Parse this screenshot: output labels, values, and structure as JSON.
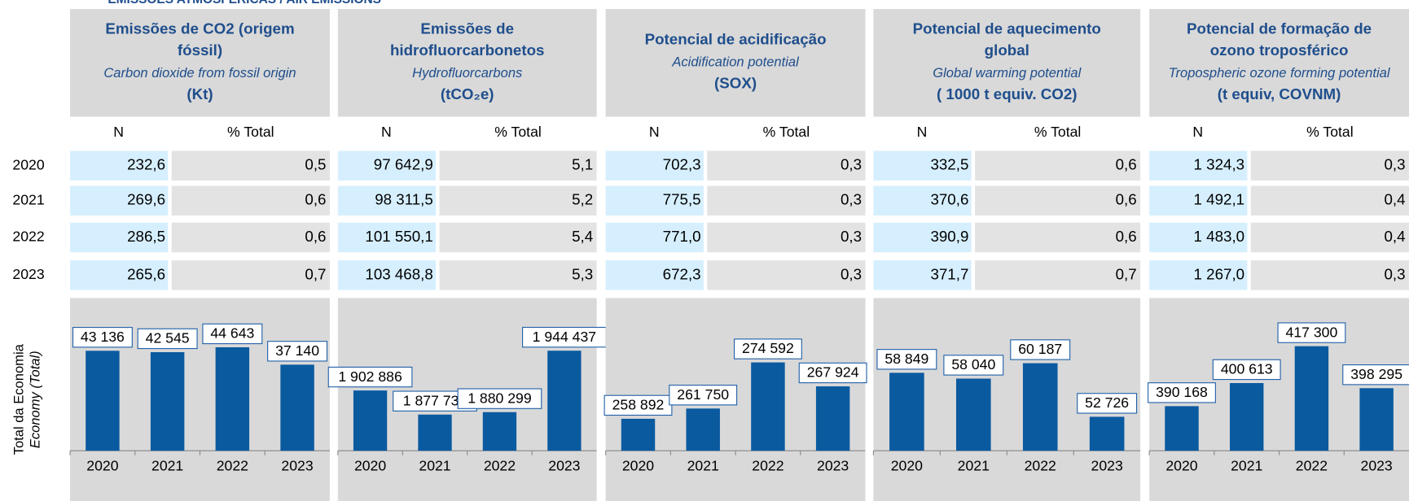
{
  "title": "EMISSÕES ATMOSFÉRICAS / AIR EMISSIONS",
  "row_label": [
    "Total da Economia",
    "Economy (Total)"
  ],
  "table": {
    "columns": [
      "N",
      "% Total"
    ],
    "years": [
      "2020",
      "2021",
      "2022",
      "2023"
    ],
    "groups": [
      {
        "title_lines": [
          "Emissões de CO2 (origem",
          "fóssil)"
        ],
        "subtitle": "Carbon dioxide from fossil origin",
        "unit": "(Kt)",
        "rows": [
          [
            "232,6",
            "0,5"
          ],
          [
            "269,6",
            "0,6"
          ],
          [
            "286,5",
            "0,6"
          ],
          [
            "265,6",
            "0,7"
          ]
        ]
      },
      {
        "title_lines": [
          "Emissões de",
          "hidrofluorcarbonetos"
        ],
        "subtitle": "Hydrofluorcarbons",
        "unit": "(tCO₂e)",
        "rows": [
          [
            "97 642,9",
            "5,1"
          ],
          [
            "98 311,5",
            "5,2"
          ],
          [
            "101 550,1",
            "5,4"
          ],
          [
            "103 468,8",
            "5,3"
          ]
        ]
      },
      {
        "title_lines": [
          "Potencial de acidificação"
        ],
        "subtitle": "Acidification potential",
        "unit": "(SOX)",
        "rows": [
          [
            "702,3",
            "0,3"
          ],
          [
            "775,5",
            "0,3"
          ],
          [
            "771,0",
            "0,3"
          ],
          [
            "672,3",
            "0,3"
          ]
        ]
      },
      {
        "title_lines": [
          "Potencial de aquecimento",
          "global"
        ],
        "subtitle": "Global warming potential",
        "unit": "( 1000 t equiv. CO2)",
        "rows": [
          [
            "332,5",
            "0,6"
          ],
          [
            "370,6",
            "0,6"
          ],
          [
            "390,9",
            "0,6"
          ],
          [
            "371,7",
            "0,7"
          ]
        ]
      },
      {
        "title_lines": [
          "Potencial de formação de",
          "ozono troposférico"
        ],
        "subtitle": "Tropospheric ozone forming potential",
        "unit": "(t equiv, COVNM)",
        "rows": [
          [
            "1 324,3",
            "0,3"
          ],
          [
            "1 492,1",
            "0,4"
          ],
          [
            "1 483,0",
            "0,4"
          ],
          [
            "1 267,0",
            "0,3"
          ]
        ]
      }
    ]
  },
  "chart_data": [
    {
      "type": "bar",
      "categories": [
        "2020",
        "2021",
        "2022",
        "2023"
      ],
      "values": [
        43136,
        42545,
        44643,
        37140
      ],
      "value_labels": [
        "43 136",
        "42 545",
        "44 643",
        "37 140"
      ],
      "color": "#0a5aa0",
      "ylim": [
        0,
        62000
      ]
    },
    {
      "type": "bar",
      "categories": [
        "2020",
        "2021",
        "2022",
        "2023"
      ],
      "values": [
        1902886,
        1877737,
        1880299,
        1944437
      ],
      "value_labels": [
        "1 902 886",
        "1 877 737",
        "1 880 299",
        "1 944 437"
      ],
      "color": "#0a5aa0",
      "ylim": [
        1840000,
        1990000
      ]
    },
    {
      "type": "bar",
      "categories": [
        "2020",
        "2021",
        "2022",
        "2023"
      ],
      "values": [
        258892,
        261750,
        274592,
        267924
      ],
      "value_labels": [
        "258 892",
        "261 750",
        "274 592",
        "267 924"
      ],
      "color": "#0a5aa0",
      "ylim": [
        250000,
        290000
      ]
    },
    {
      "type": "bar",
      "categories": [
        "2020",
        "2021",
        "2022",
        "2023"
      ],
      "values": [
        58849,
        58040,
        60187,
        52726
      ],
      "value_labels": [
        "58 849",
        "58 040",
        "60 187",
        "52 726"
      ],
      "color": "#0a5aa0",
      "ylim": [
        48000,
        68000
      ]
    },
    {
      "type": "bar",
      "categories": [
        "2020",
        "2021",
        "2022",
        "2023"
      ],
      "values": [
        390168,
        400613,
        417300,
        398295
      ],
      "value_labels": [
        "390 168",
        "400 613",
        "417 300",
        "398 295"
      ],
      "color": "#0a5aa0",
      "ylim": [
        370000,
        435000
      ]
    }
  ]
}
